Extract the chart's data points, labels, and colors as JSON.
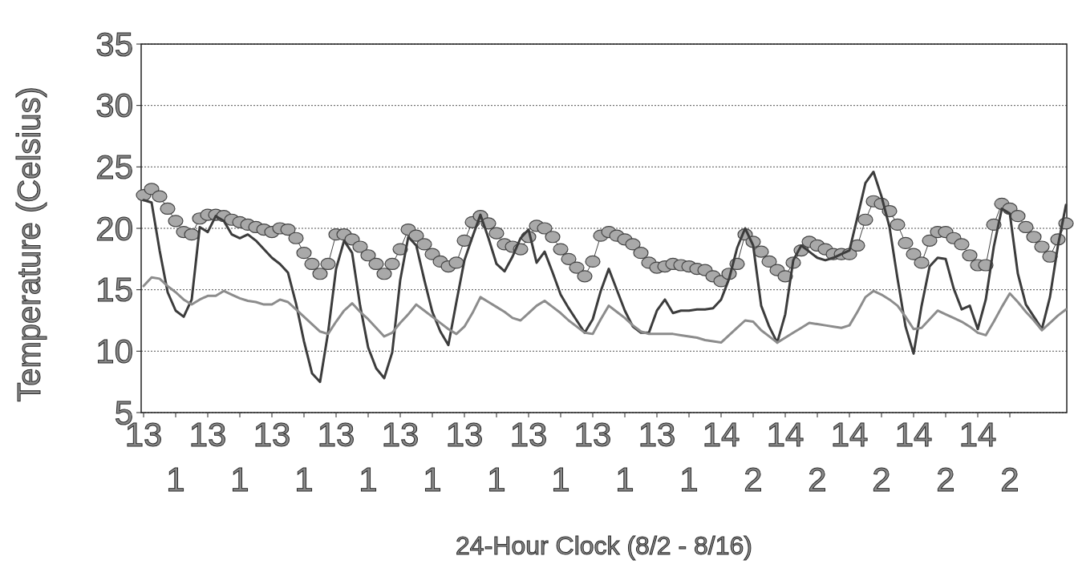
{
  "chart_data": {
    "type": "line",
    "xlabel": "24-Hour Clock (8/2 - 8/16)",
    "ylabel": "Temperature (Celsius)",
    "ylim": [
      5,
      35
    ],
    "yticks": [
      5,
      10,
      15,
      20,
      25,
      30,
      35
    ],
    "categories": [
      "13",
      null,
      null,
      null,
      "1",
      null,
      null,
      null,
      "13",
      null,
      null,
      null,
      "1",
      null,
      null,
      null,
      "13",
      null,
      null,
      null,
      "1",
      null,
      null,
      null,
      "13",
      null,
      null,
      null,
      "1",
      null,
      null,
      null,
      "13",
      null,
      null,
      null,
      "1",
      null,
      null,
      null,
      "13",
      null,
      null,
      null,
      "1",
      null,
      null,
      null,
      "13",
      null,
      null,
      null,
      "1",
      null,
      null,
      null,
      "13",
      null,
      null,
      null,
      "1",
      null,
      null,
      null,
      "13",
      null,
      null,
      null,
      "1",
      null,
      null,
      null,
      "14",
      null,
      null,
      null,
      "2",
      null,
      null,
      null,
      "14",
      null,
      null,
      null,
      "2",
      null,
      null,
      null,
      "14",
      null,
      null,
      null,
      "2",
      null,
      null,
      null,
      "14",
      null,
      null,
      null,
      "2",
      null,
      null,
      null,
      "14",
      null,
      null,
      null,
      "2",
      null,
      null,
      null,
      null,
      null,
      null,
      null
    ],
    "grid": "y",
    "line_style": "solid",
    "series": [
      {
        "color": "#a9a9a9",
        "marker": "circle",
        "values": [
          22.7,
          23.2,
          22.6,
          21.6,
          20.6,
          19.7,
          19.5,
          20.8,
          21.1,
          21.1,
          21.0,
          20.7,
          20.5,
          20.3,
          20.1,
          19.9,
          19.7,
          20.0,
          19.9,
          19.2,
          18.0,
          17.1,
          16.3,
          17.1,
          19.5,
          19.5,
          19.1,
          18.5,
          17.8,
          17.1,
          16.3,
          17.1,
          18.3,
          19.9,
          19.4,
          18.7,
          17.9,
          17.3,
          16.9,
          17.2,
          19.0,
          20.5,
          21.0,
          20.4,
          19.6,
          18.7,
          18.5,
          18.3,
          19.3,
          20.2,
          20.0,
          19.3,
          18.3,
          17.5,
          16.8,
          16.1,
          17.3,
          19.4,
          19.7,
          19.4,
          19.1,
          18.7,
          18.0,
          17.2,
          16.8,
          16.9,
          17.1,
          17.0,
          16.9,
          16.7,
          16.6,
          16.1,
          15.7,
          16.3,
          17.1,
          19.5,
          18.9,
          18.1,
          17.3,
          16.6,
          16.1,
          17.2,
          18.2,
          18.9,
          18.6,
          18.3,
          17.9,
          17.9,
          17.9,
          18.6,
          20.7,
          22.2,
          22.0,
          21.4,
          20.3,
          18.8,
          17.9,
          17.2,
          19.0,
          19.7,
          19.7,
          19.2,
          18.7,
          17.8,
          17.0,
          17.0,
          20.3,
          22.0,
          21.6,
          21.0,
          20.1,
          19.3,
          18.5,
          17.7,
          19.1,
          20.4
        ]
      },
      {
        "color": "#3c3c3c",
        "values": [
          22.3,
          22.1,
          18.2,
          14.8,
          13.3,
          12.8,
          14.2,
          20.1,
          19.7,
          21.0,
          20.6,
          19.5,
          19.2,
          19.5,
          19.0,
          18.3,
          17.6,
          17.1,
          16.4,
          13.9,
          10.8,
          8.2,
          7.5,
          11.5,
          16.7,
          19.0,
          18.0,
          13.7,
          10.3,
          8.6,
          7.8,
          9.9,
          15.8,
          19.3,
          18.6,
          15.8,
          13.2,
          11.6,
          10.5,
          14.0,
          17.4,
          19.3,
          21.1,
          19.2,
          17.1,
          16.5,
          17.7,
          19.2,
          19.9,
          17.2,
          18.1,
          16.4,
          14.6,
          13.5,
          12.5,
          11.5,
          12.6,
          14.9,
          16.7,
          15.0,
          13.3,
          12.0,
          11.5,
          11.5,
          13.3,
          14.2,
          13.1,
          13.3,
          13.3,
          13.4,
          13.4,
          13.5,
          14.2,
          15.9,
          18.4,
          20.0,
          18.6,
          13.7,
          12.0,
          10.7,
          13.0,
          17.4,
          18.6,
          18.1,
          17.6,
          17.4,
          17.6,
          17.9,
          18.2,
          20.9,
          23.7,
          24.6,
          22.6,
          20.1,
          15.9,
          12.0,
          9.8,
          13.7,
          16.9,
          17.6,
          17.5,
          15.1,
          13.4,
          13.7,
          11.8,
          14.2,
          18.5,
          21.6,
          21.2,
          16.3,
          13.8,
          12.8,
          11.8,
          14.4,
          18.6,
          21.9
        ]
      },
      {
        "color": "#8c8c8c",
        "values": [
          15.3,
          16.0,
          15.9,
          15.3,
          14.8,
          14.2,
          13.8,
          14.2,
          14.5,
          14.5,
          14.9,
          14.6,
          14.3,
          14.1,
          14.0,
          13.8,
          13.8,
          14.2,
          14.0,
          13.4,
          12.8,
          12.2,
          11.6,
          11.4,
          12.4,
          13.3,
          13.9,
          13.2,
          12.6,
          11.9,
          11.2,
          11.5,
          12.3,
          13.0,
          13.8,
          13.3,
          12.8,
          12.3,
          11.8,
          11.4,
          12.0,
          13.1,
          14.4,
          14.0,
          13.6,
          13.2,
          12.7,
          12.5,
          13.1,
          13.7,
          14.1,
          13.6,
          13.1,
          12.5,
          12.0,
          11.5,
          11.4,
          12.6,
          13.7,
          13.2,
          12.7,
          12.1,
          11.6,
          11.4,
          11.4,
          11.4,
          11.4,
          11.3,
          11.2,
          11.1,
          10.9,
          10.8,
          10.7,
          11.3,
          11.9,
          12.5,
          12.4,
          11.7,
          11.2,
          10.7,
          11.1,
          11.5,
          11.9,
          12.3,
          12.2,
          12.1,
          12.0,
          11.9,
          12.1,
          13.2,
          14.4,
          14.9,
          14.6,
          14.2,
          13.7,
          12.8,
          11.8,
          11.9,
          12.6,
          13.3,
          13.0,
          12.7,
          12.4,
          12.0,
          11.5,
          11.3,
          12.4,
          13.6,
          14.7,
          14.0,
          13.2,
          12.5,
          11.7,
          12.3,
          12.9,
          13.4
        ]
      }
    ]
  }
}
